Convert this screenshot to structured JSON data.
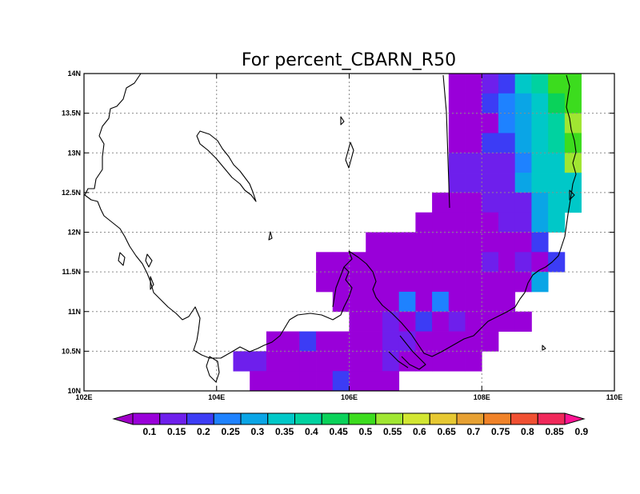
{
  "title": "For percent_CBARN_R50",
  "map": {
    "lon_range": [
      102,
      110
    ],
    "lat_range": [
      10,
      14
    ],
    "lon_ticks": [
      {
        "value": 102,
        "label": "102E"
      },
      {
        "value": 104,
        "label": "104E"
      },
      {
        "value": 106,
        "label": "106E"
      },
      {
        "value": 108,
        "label": "108E"
      },
      {
        "value": 110,
        "label": "110E"
      }
    ],
    "lat_ticks": [
      {
        "value": 10,
        "label": "10N"
      },
      {
        "value": 10.5,
        "label": "10.5N"
      },
      {
        "value": 11,
        "label": "11N"
      },
      {
        "value": 11.5,
        "label": "11.5N"
      },
      {
        "value": 12,
        "label": "12N"
      },
      {
        "value": 12.5,
        "label": "12.5N"
      },
      {
        "value": 13,
        "label": "13N"
      },
      {
        "value": 13.5,
        "label": "13.5N"
      },
      {
        "value": 14,
        "label": "14N"
      }
    ],
    "grid": "dotted",
    "cell_deg": 0.25
  },
  "colorbar": {
    "labels": [
      "0.1",
      "0.15",
      "0.2",
      "0.25",
      "0.3",
      "0.35",
      "0.4",
      "0.45",
      "0.5",
      "0.55",
      "0.6",
      "0.65",
      "0.7",
      "0.75",
      "0.8",
      "0.85",
      "0.9"
    ],
    "colors": [
      "#a000c8",
      "#9900d9",
      "#6e1fec",
      "#3c3cf5",
      "#1e82ff",
      "#0aa5e6",
      "#00c8c8",
      "#00d2a0",
      "#0ad25a",
      "#3cdc1e",
      "#a0e632",
      "#d2e632",
      "#e6c832",
      "#e6a032",
      "#f08228",
      "#f05032",
      "#f0285a",
      "#ff1493"
    ]
  },
  "chart_data": {
    "type": "heatmap",
    "title": "For percent_CBARN_R50",
    "xlabel": "",
    "ylabel": "",
    "xlim": [
      102,
      110
    ],
    "ylim": [
      10,
      14
    ],
    "cell_size_deg": 0.25,
    "value_note": "each cell value = class index into colorbar.colors (0 -> <0.1, 1 -> 0.1-0.15, ...)",
    "cells": [
      {
        "lat": 13.75,
        "lons": [
          107.5,
          107.75,
          108.0,
          108.25,
          108.5,
          108.75,
          109.0,
          109.25
        ],
        "classes": [
          1,
          1,
          2,
          3,
          6,
          7,
          9,
          9
        ]
      },
      {
        "lat": 13.5,
        "lons": [
          107.5,
          107.75,
          108.0,
          108.25,
          108.5,
          108.75,
          109.0,
          109.25
        ],
        "classes": [
          1,
          1,
          3,
          4,
          5,
          6,
          8,
          9
        ]
      },
      {
        "lat": 13.25,
        "lons": [
          107.5,
          107.75,
          108.0,
          108.25,
          108.5,
          108.75,
          109.0,
          109.25
        ],
        "classes": [
          1,
          1,
          1,
          4,
          5,
          6,
          7,
          10
        ]
      },
      {
        "lat": 13.0,
        "lons": [
          107.5,
          107.75,
          108.0,
          108.25,
          108.5,
          108.75,
          109.0,
          109.25
        ],
        "classes": [
          1,
          1,
          3,
          3,
          5,
          6,
          7,
          9
        ]
      },
      {
        "lat": 12.75,
        "lons": [
          107.5,
          107.75,
          108.0,
          108.25,
          108.5,
          108.75,
          109.0,
          109.25
        ],
        "classes": [
          2,
          2,
          2,
          2,
          4,
          6,
          6,
          10
        ]
      },
      {
        "lat": 12.5,
        "lons": [
          107.5,
          107.75,
          108.0,
          108.25,
          108.5,
          108.75,
          109.0,
          109.25
        ],
        "classes": [
          2,
          2,
          2,
          2,
          5,
          6,
          6,
          6
        ]
      },
      {
        "lat": 12.25,
        "lons": [
          107.25,
          107.5,
          107.75,
          108.0,
          108.25,
          108.5,
          108.75,
          109.0,
          109.25
        ],
        "classes": [
          1,
          1,
          1,
          2,
          2,
          2,
          5,
          6,
          6
        ]
      },
      {
        "lat": 12.0,
        "lons": [
          107.0,
          107.25,
          107.5,
          107.75,
          108.0,
          108.25,
          108.5,
          108.75,
          109.0
        ],
        "classes": [
          1,
          1,
          1,
          1,
          1,
          2,
          2,
          5,
          6
        ]
      },
      {
        "lat": 11.75,
        "lons": [
          106.25,
          106.5,
          106.75,
          107.0,
          107.25,
          107.5,
          107.75,
          108.0,
          108.25,
          108.5,
          108.75
        ],
        "classes": [
          1,
          1,
          1,
          1,
          1,
          1,
          1,
          1,
          1,
          1,
          3
        ]
      },
      {
        "lat": 11.5,
        "lons": [
          105.5,
          105.75,
          106.0,
          106.25,
          106.5,
          106.75,
          107.0,
          107.25,
          107.5,
          107.75,
          108.0,
          108.25,
          108.5,
          108.75,
          109.0
        ],
        "classes": [
          1,
          1,
          1,
          1,
          1,
          1,
          1,
          1,
          1,
          1,
          2,
          1,
          2,
          1,
          3
        ]
      },
      {
        "lat": 11.25,
        "lons": [
          105.5,
          105.75,
          106.0,
          106.25,
          106.5,
          106.75,
          107.0,
          107.25,
          107.5,
          107.75,
          108.0,
          108.25,
          108.5,
          108.75
        ],
        "classes": [
          1,
          1,
          1,
          1,
          1,
          1,
          1,
          1,
          1,
          1,
          1,
          1,
          1,
          5
        ]
      },
      {
        "lat": 11.0,
        "lons": [
          105.75,
          106.0,
          106.25,
          106.5,
          106.75,
          107.0,
          107.25,
          107.5,
          107.75,
          108.0,
          108.25
        ],
        "classes": [
          1,
          1,
          1,
          1,
          4,
          1,
          4,
          1,
          1,
          1,
          1
        ]
      },
      {
        "lat": 10.75,
        "lons": [
          106.0,
          106.25,
          106.5,
          106.75,
          107.0,
          107.25,
          107.5,
          107.75,
          108.0,
          108.25,
          108.5
        ],
        "classes": [
          1,
          1,
          2,
          1,
          3,
          1,
          2,
          1,
          1,
          1,
          1
        ]
      },
      {
        "lat": 10.5,
        "lons": [
          104.75,
          105.0,
          105.25,
          105.5,
          105.75,
          106.0,
          106.25,
          106.5,
          106.75,
          107.0,
          107.25,
          107.5,
          107.75,
          108.0
        ],
        "classes": [
          1,
          1,
          3,
          1,
          1,
          1,
          1,
          2,
          2,
          1,
          1,
          1,
          1,
          1
        ]
      },
      {
        "lat": 10.25,
        "lons": [
          104.25,
          104.5,
          104.75,
          105.0,
          105.25,
          105.5,
          105.75,
          106.0,
          106.25,
          106.5,
          106.75,
          107.0,
          107.25,
          107.5,
          107.75
        ],
        "classes": [
          2,
          2,
          1,
          1,
          1,
          1,
          1,
          1,
          1,
          2,
          1,
          1,
          1,
          1,
          1
        ]
      },
      {
        "lat": 10.0,
        "lons": [
          104.5,
          104.75,
          105.0,
          105.25,
          105.5,
          105.75,
          106.0,
          106.25,
          106.5
        ],
        "classes": [
          1,
          1,
          1,
          1,
          1,
          3,
          1,
          1,
          1
        ]
      }
    ]
  }
}
